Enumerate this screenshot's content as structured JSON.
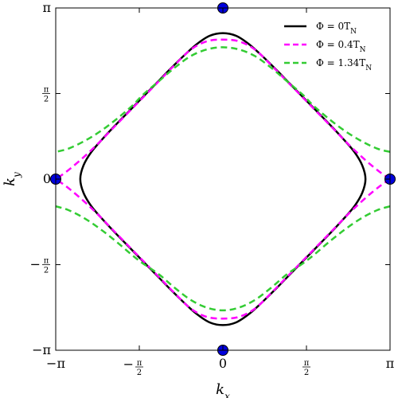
{
  "chart_data": {
    "type": "line",
    "title": "",
    "xlabel": "k_x",
    "ylabel": "k_y",
    "xlim": [
      -3.14159,
      3.14159
    ],
    "ylim": [
      -3.14159,
      3.14159
    ],
    "grid": false,
    "legend_position": "top-right",
    "x_ticks": [
      {
        "value": -3.14159,
        "label": "−π",
        "kind": "plain"
      },
      {
        "value": -1.5708,
        "label": "−",
        "num": "π",
        "den": "2",
        "kind": "frac"
      },
      {
        "value": 0,
        "label": "0",
        "kind": "plain"
      },
      {
        "value": 1.5708,
        "label": "",
        "num": "π",
        "den": "2",
        "kind": "frac"
      },
      {
        "value": 3.14159,
        "label": "π",
        "kind": "plain"
      }
    ],
    "y_ticks": [
      {
        "value": -3.14159,
        "label": "−π",
        "kind": "plain"
      },
      {
        "value": -1.5708,
        "label": "−",
        "num": "π",
        "den": "2",
        "kind": "frac"
      },
      {
        "value": 0,
        "label": "0",
        "kind": "plain"
      },
      {
        "value": 1.5708,
        "label": "",
        "num": "π",
        "den": "2",
        "kind": "frac"
      },
      {
        "value": 3.14159,
        "label": "π",
        "kind": "plain"
      }
    ],
    "series": [
      {
        "name": "Φ = 0T",
        "name_sub": "N",
        "color": "#000000",
        "dash": "solid",
        "shape": "closed",
        "points": [
          [
            2.68,
            0
          ],
          [
            2.62,
            0.25
          ],
          [
            2.47,
            0.5
          ],
          [
            2.25,
            0.75
          ],
          [
            2.01,
            1.0
          ],
          [
            1.76,
            1.25
          ],
          [
            1.51,
            1.5
          ],
          [
            1.26,
            1.75
          ],
          [
            1.0,
            2.01
          ],
          [
            0.75,
            2.25
          ],
          [
            0.5,
            2.47
          ],
          [
            0.25,
            2.63
          ],
          [
            0,
            2.68
          ]
        ]
      },
      {
        "name": "Φ = 0.4T",
        "name_sub": "N",
        "color": "#ff00ff",
        "dash": "dashed",
        "shape": "open",
        "outer": [
          [
            3.14,
            0
          ],
          [
            2.95,
            0.13
          ],
          [
            2.7,
            0.33
          ],
          [
            2.4,
            0.6
          ],
          [
            2.1,
            0.9
          ],
          [
            1.8,
            1.2
          ],
          [
            1.5,
            1.5
          ],
          [
            1.2,
            1.8
          ],
          [
            0.9,
            2.1
          ],
          [
            0.6,
            2.38
          ],
          [
            0.3,
            2.53
          ],
          [
            0,
            2.56
          ]
        ]
      },
      {
        "name": "Φ = 1.34T",
        "name_sub": "N",
        "color": "#33cc33",
        "dash": "dashed",
        "shape": "open",
        "outer": [
          [
            3.14,
            0.5
          ],
          [
            2.9,
            0.56
          ],
          [
            2.6,
            0.7
          ],
          [
            2.3,
            0.88
          ],
          [
            2.0,
            1.1
          ],
          [
            1.7,
            1.35
          ],
          [
            1.5,
            1.55
          ],
          [
            1.2,
            1.8
          ],
          [
            0.9,
            2.05
          ],
          [
            0.6,
            2.26
          ],
          [
            0.3,
            2.38
          ],
          [
            0,
            2.42
          ]
        ],
        "inner": [
          [
            3.14,
            -0.5
          ],
          [
            2.9,
            -0.57
          ],
          [
            2.6,
            -0.72
          ],
          [
            2.3,
            -0.92
          ],
          [
            2.0,
            -1.15
          ],
          [
            1.7,
            -1.4
          ],
          [
            1.5,
            -1.55
          ],
          [
            1.2,
            -1.75
          ],
          [
            0.9,
            -2.0
          ],
          [
            0.6,
            -2.22
          ],
          [
            0.3,
            -2.36
          ],
          [
            0,
            -2.41
          ]
        ]
      }
    ],
    "markers": {
      "color": "#0000dd",
      "points": [
        [
          0,
          3.14159
        ],
        [
          0,
          -3.14159
        ],
        [
          -3.14159,
          0
        ],
        [
          3.14159,
          0
        ]
      ]
    }
  }
}
